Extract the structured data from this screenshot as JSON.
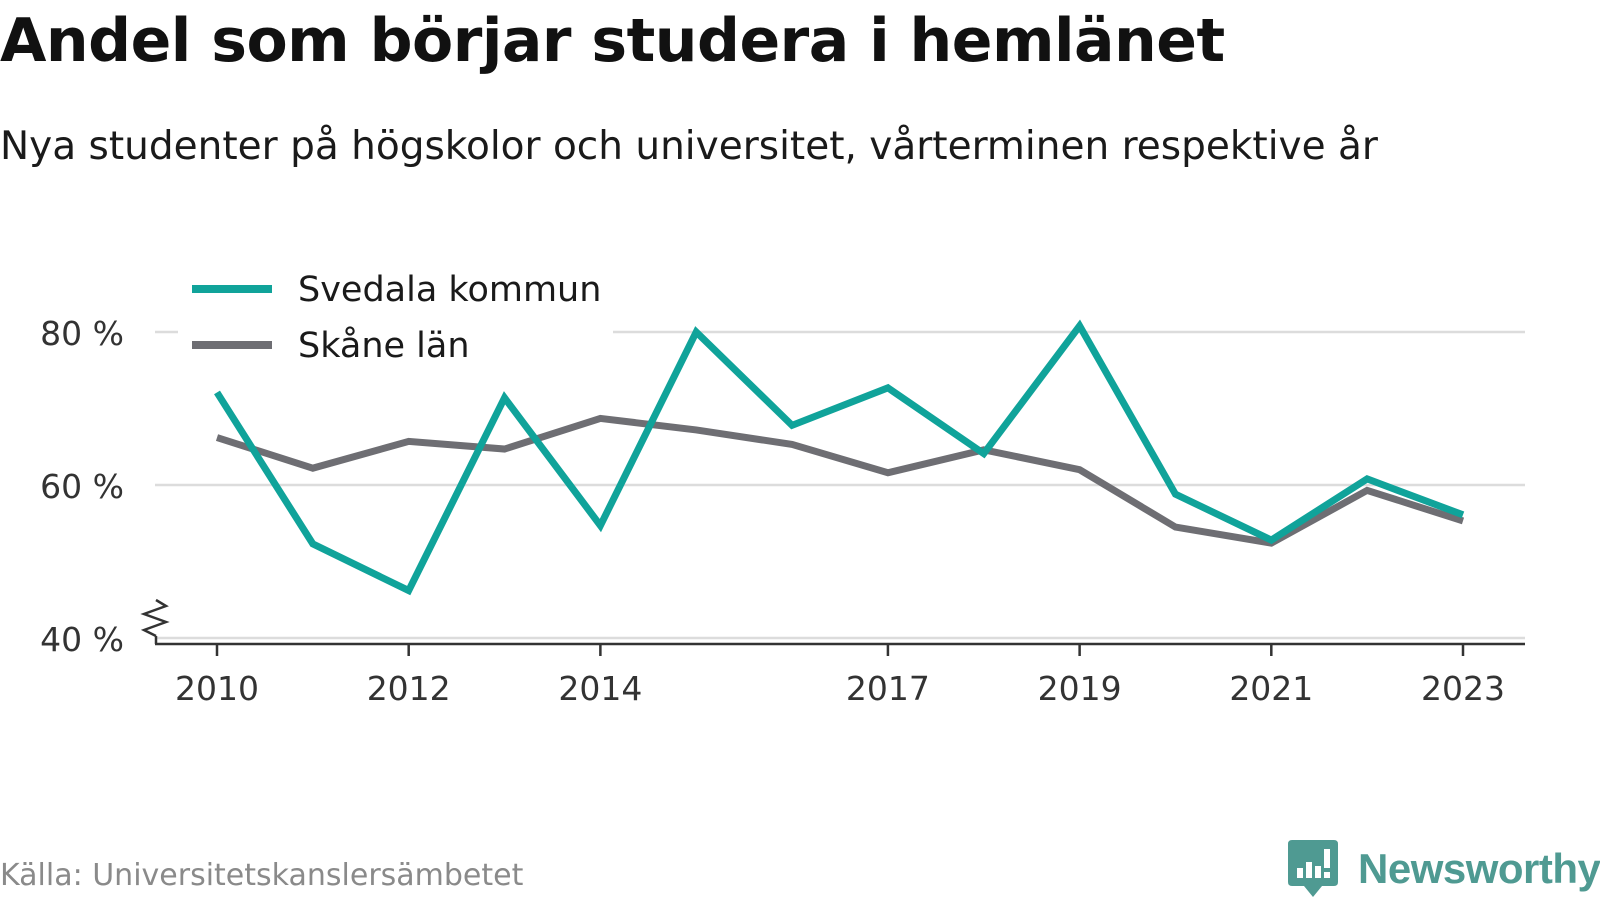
{
  "title": "Andel som börjar studera i hemlänet",
  "subtitle": "Nya studenter på högskolor och universitet, vårterminen respektive år",
  "source": "Källa: Universitetskanslersämbetet",
  "brand": {
    "name": "Newsworthy",
    "icon": "newsworthy-logo-icon",
    "color": "#4f9a92"
  },
  "chart_data": {
    "type": "line",
    "x": [
      2010,
      2011,
      2012,
      2013,
      2014,
      2015,
      2016,
      2017,
      2018,
      2019,
      2020,
      2021,
      2022,
      2023
    ],
    "series": [
      {
        "name": "Svedala kommun",
        "color": "#10a39a",
        "values": [
          72.1,
          52.3,
          46.2,
          71.4,
          54.7,
          80.0,
          67.8,
          72.7,
          64.1,
          80.8,
          58.8,
          52.8,
          60.8,
          56.1
        ]
      },
      {
        "name": "Skåne län",
        "color": "#6e6e73",
        "values": [
          66.2,
          62.2,
          65.7,
          64.7,
          68.7,
          67.2,
          65.3,
          61.6,
          64.6,
          62.0,
          54.5,
          52.4,
          59.3,
          55.3
        ]
      }
    ],
    "x_ticks": [
      2010,
      2012,
      2014,
      2017,
      2019,
      2021,
      2023
    ],
    "x_tick_labels": [
      "2010",
      "2012",
      "2014",
      "2017",
      "2019",
      "2021",
      "2023"
    ],
    "y_ticks": [
      40,
      60,
      80
    ],
    "y_tick_labels": [
      "40 %",
      "60 %",
      "80 %"
    ],
    "ylim": [
      40,
      80
    ],
    "y_axis_break": true,
    "grid": "horizontal",
    "legend_position": "top-left"
  }
}
